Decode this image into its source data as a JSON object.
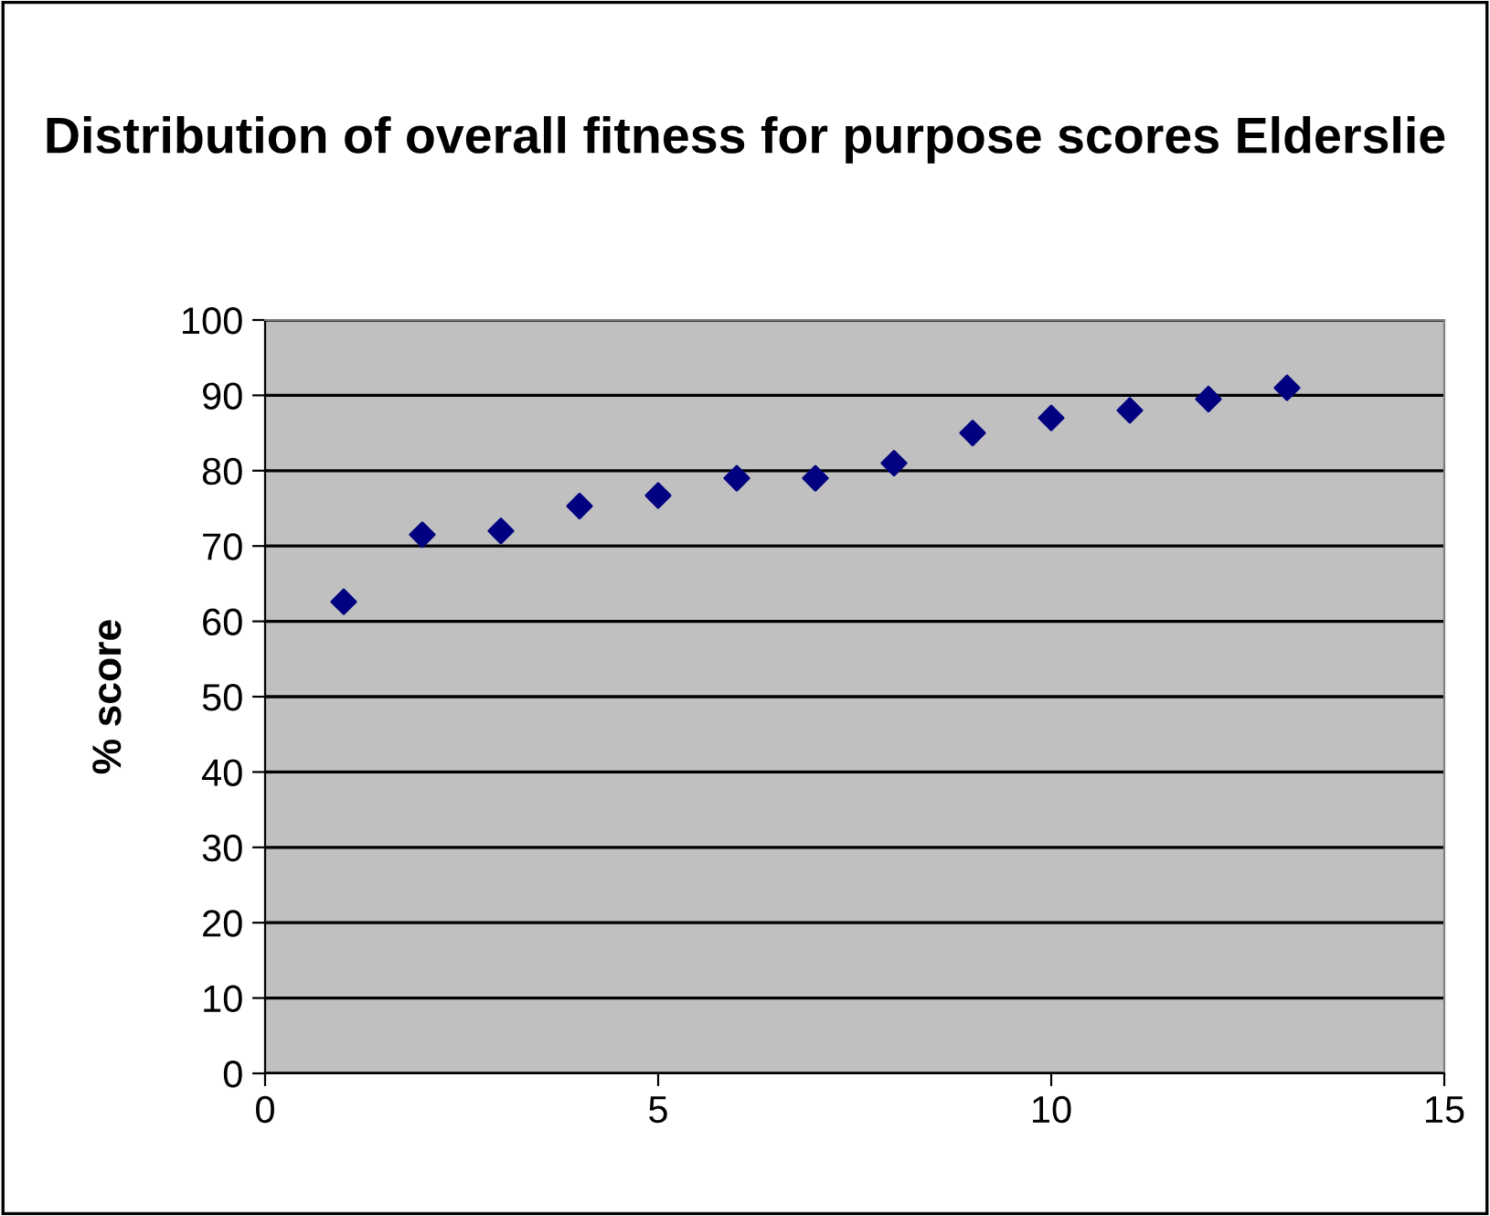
{
  "chart_data": {
    "type": "scatter",
    "title": "Distribution of overall fitness for purpose scores Elderslie",
    "ylabel": "% score",
    "x": [
      1,
      2,
      3,
      4,
      5,
      6,
      7,
      8,
      9,
      10,
      11,
      12,
      13
    ],
    "series": [
      {
        "color": "#000080",
        "values": [
          62.6,
          71.5,
          72,
          75.3,
          76.7,
          79,
          79,
          81,
          85,
          87,
          88,
          89.5,
          91
        ]
      }
    ],
    "xlim": [
      0,
      15
    ],
    "xticks": [
      0,
      5,
      10,
      15
    ],
    "ylim": [
      0,
      100
    ],
    "yticks": [
      0,
      10,
      20,
      30,
      40,
      50,
      60,
      70,
      80,
      90,
      100
    ],
    "grid": "y",
    "marker": "diamond",
    "legend": false
  }
}
